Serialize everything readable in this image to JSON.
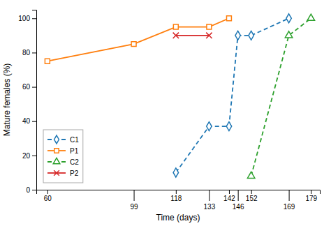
{
  "chart_data": {
    "type": "line",
    "xlabel": "Time (days)",
    "ylabel": "Mature females (%)",
    "series": [
      {
        "name": "C1",
        "x": [
          118,
          133,
          142,
          146,
          152,
          169
        ],
        "values": [
          10,
          37,
          37,
          90,
          90,
          100
        ],
        "marker": "diamond",
        "line_style": "dashed"
      },
      {
        "name": "P1",
        "x": [
          60,
          99,
          118,
          133,
          142
        ],
        "values": [
          75,
          85,
          95,
          95,
          100
        ],
        "marker": "square",
        "line_style": "solid"
      },
      {
        "name": "C2",
        "x": [
          152,
          169,
          179
        ],
        "values": [
          8,
          90,
          100
        ],
        "marker": "triangle",
        "line_style": "dashed"
      },
      {
        "name": "P2",
        "x": [
          118,
          133
        ],
        "values": [
          90,
          90
        ],
        "marker": "x",
        "line_style": "solid"
      }
    ],
    "xlim": [
      55,
      183
    ],
    "xticks": [
      60,
      99,
      118,
      133,
      142,
      146,
      152,
      169,
      179
    ],
    "ylim": [
      0,
      105
    ],
    "yticks": [
      0,
      20,
      40,
      60,
      80,
      100
    ],
    "grid": false,
    "legend": "lower left"
  }
}
